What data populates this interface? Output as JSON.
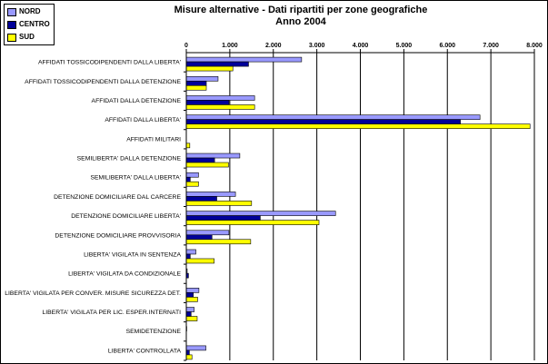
{
  "title_line1": "Misure alternative - Dati ripartiti per zone geografiche",
  "title_line2": "Anno  2004",
  "chart_data": {
    "type": "bar",
    "orientation": "horizontal",
    "title": "Misure alternative - Dati ripartiti per zone geografiche Anno  2004",
    "categories": [
      "AFFIDATI TOSSICODIPENDENTI DALLA LIBERTA'",
      "AFFIDATI TOSSICODIPENDENTI DALLA DETENZIONE",
      "AFFIDATI DALLA DETENZIONE",
      "AFFIDATI DALLA LIBERTA'",
      "AFFIDATI MILITARI",
      "SEMILIBERTA' DALLA DETENZIONE",
      "SEMILIBERTA' DALLA LIBERTA'",
      "DETENZIONE DOMICILIARE DAL CARCERE",
      "DETENZIONE DOMICILIARE LIBERTA'",
      "DETENZIONE DOMICILIARE PROVVISORIA",
      "LIBERTA' VIGILATA IN SENTENZA",
      "LIBERTA' VIGILATA DA CONDIZIONALE",
      "LIBERTA' VIGILATA PER CONVER. MISURE SICUREZZA DET.",
      "LIBERTA' VIGILATA  PER LIC. ESPER.INTERNATI",
      "SEMIDETENZIONE",
      "LIBERTA'  CONTROLLATA"
    ],
    "series": [
      {
        "name": "NORD",
        "color": "#9999ff",
        "values": [
          2650,
          730,
          1570,
          6750,
          0,
          1230,
          280,
          1130,
          3430,
          980,
          220,
          20,
          290,
          180,
          10,
          450
        ]
      },
      {
        "name": "CENTRO",
        "color": "#000099",
        "values": [
          1430,
          460,
          980,
          6300,
          0,
          650,
          90,
          700,
          1700,
          590,
          90,
          50,
          160,
          110,
          0,
          70
        ]
      },
      {
        "name": "SUD",
        "color": "#ffff00",
        "values": [
          1070,
          460,
          1570,
          7900,
          80,
          970,
          280,
          1500,
          3050,
          1480,
          640,
          0,
          260,
          250,
          0,
          130
        ]
      }
    ],
    "xlim": [
      0,
      8000
    ],
    "x_ticks": [
      "0",
      "1.000",
      "2.000",
      "3.000",
      "4.000",
      "5.000",
      "6.000",
      "7.000",
      "8.000"
    ],
    "grid": true,
    "legend_position": "top-left"
  }
}
